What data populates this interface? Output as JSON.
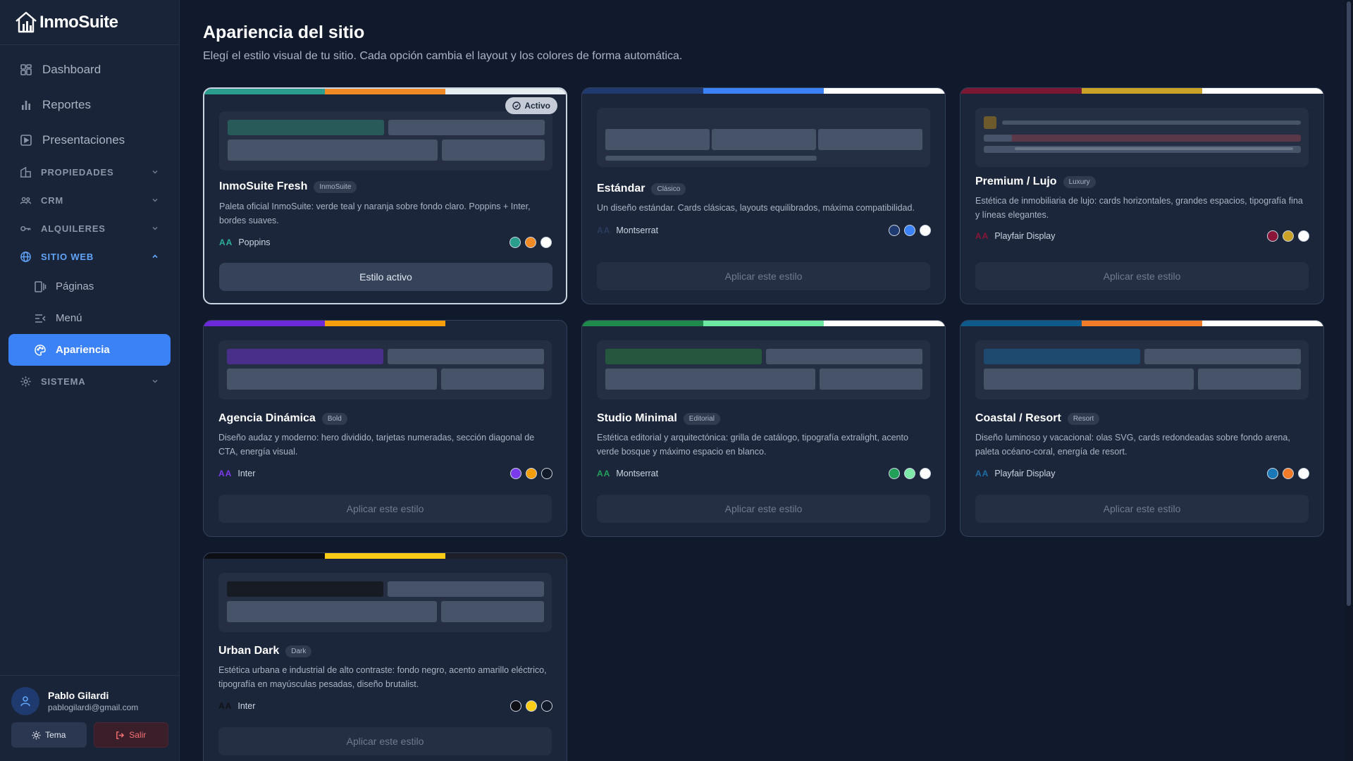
{
  "app": {
    "name": "InmoSuite"
  },
  "sidebar": {
    "items": [
      {
        "label": "Dashboard",
        "icon": "grid-icon"
      },
      {
        "label": "Reportes",
        "icon": "bar-chart-icon"
      },
      {
        "label": "Presentaciones",
        "icon": "play-square-icon"
      }
    ],
    "sections": [
      {
        "label": "PROPIEDADES",
        "icon": "building-icon"
      },
      {
        "label": "CRM",
        "icon": "users-icon"
      },
      {
        "label": "ALQUILERES",
        "icon": "key-icon"
      },
      {
        "label": "SITIO WEB",
        "icon": "globe-icon"
      },
      {
        "label": "SISTEMA",
        "icon": "gear-icon"
      }
    ],
    "sub_items": [
      {
        "label": "Páginas",
        "icon": "pages-icon"
      },
      {
        "label": "Menú",
        "icon": "menu-icon"
      },
      {
        "label": "Apariencia",
        "icon": "palette-icon"
      }
    ]
  },
  "user": {
    "name": "Pablo Gilardi",
    "email": "pablogilardi@gmail.com",
    "theme_label": "Tema",
    "logout_label": "Salir"
  },
  "page": {
    "title": "Apariencia del sitio",
    "subtitle": "Elegí el estilo visual de tu sitio. Cada opción cambia el layout y los colores de forma automática."
  },
  "cards": [
    {
      "title": "InmoSuite Fresh",
      "tag": "InmoSuite",
      "description": "Paleta oficial InmoSuite: verde teal y naranja sobre fondo claro. Poppins + Inter, bordes suaves.",
      "font": "Poppins",
      "font_color": "#2bb09c",
      "strip": [
        "#2a9d8f",
        "#f08a24",
        "#e6eef2"
      ],
      "swatches": [
        "#2a9d8f",
        "#f08a24",
        "#ffffff"
      ],
      "button": "Estilo activo",
      "active": true,
      "badge": "Activo"
    },
    {
      "title": "Estándar",
      "tag": "Clásico",
      "description": "Un diseño estándar. Cards clásicas, layouts equilibrados, máxima compatibilidad.",
      "font": "Montserrat",
      "font_color": "#2a3c5e",
      "strip": [
        "#1e3a6e",
        "#3b82f6",
        "#ffffff"
      ],
      "swatches": [
        "#1e3a6e",
        "#3b82f6",
        "#ffffff"
      ],
      "button": "Aplicar este estilo",
      "active": false
    },
    {
      "title": "Premium / Lujo",
      "tag": "Luxury",
      "description": "Estética de inmobiliaria de lujo: cards horizontales, grandes espacios, tipografía fina y líneas elegantes.",
      "font": "Playfair Display",
      "font_color": "#8b1538",
      "strip": [
        "#7a1733",
        "#c9a227",
        "#ffffff"
      ],
      "swatches": [
        "#8b1538",
        "#c9a227",
        "#ffffff"
      ],
      "button": "Aplicar este estilo",
      "active": false
    },
    {
      "title": "Agencia Dinámica",
      "tag": "Bold",
      "description": "Diseño audaz y moderno: hero dividido, tarjetas numeradas, sección diagonal de CTA, energía visual.",
      "font": "Inter",
      "font_color": "#7c3aed",
      "strip": [
        "#6d28d9",
        "#f59e0b",
        "#1c263a"
      ],
      "swatches": [
        "#7c3aed",
        "#f59e0b",
        "#111827"
      ],
      "button": "Aplicar este estilo",
      "active": false
    },
    {
      "title": "Studio Minimal",
      "tag": "Editorial",
      "description": "Estética editorial y arquitectónica: grilla de catálogo, tipografía extralight, acento verde bosque y máximo espacio en blanco.",
      "font": "Montserrat",
      "font_color": "#22a05a",
      "strip": [
        "#1f8a4c",
        "#6ee7a0",
        "#ffffff"
      ],
      "swatches": [
        "#22a05a",
        "#7ee8a8",
        "#ffffff"
      ],
      "button": "Aplicar este estilo",
      "active": false
    },
    {
      "title": "Coastal / Resort",
      "tag": "Resort",
      "description": "Diseño luminoso y vacacional: olas SVG, cards redondeadas sobre fondo arena, paleta océano-coral, energía de resort.",
      "font": "Playfair Display",
      "font_color": "#1e6fa8",
      "strip": [
        "#0e5a8a",
        "#f07c2a",
        "#ffffff"
      ],
      "swatches": [
        "#1a78b8",
        "#f07c2a",
        "#ffffff"
      ],
      "button": "Aplicar este estilo",
      "active": false
    },
    {
      "title": "Urban Dark",
      "tag": "Dark",
      "description": "Estética urbana e industrial de alto contraste: fondo negro, acento amarillo eléctrico, tipografía en mayúsculas pesadas, diseño brutalist.",
      "font": "Inter",
      "font_color": "#0f1115",
      "strip": [
        "#0d0f14",
        "#facc15",
        "#1c1f27"
      ],
      "swatches": [
        "#0d0f14",
        "#facc15",
        "#111827"
      ],
      "button": "Aplicar este estilo",
      "active": false
    }
  ]
}
